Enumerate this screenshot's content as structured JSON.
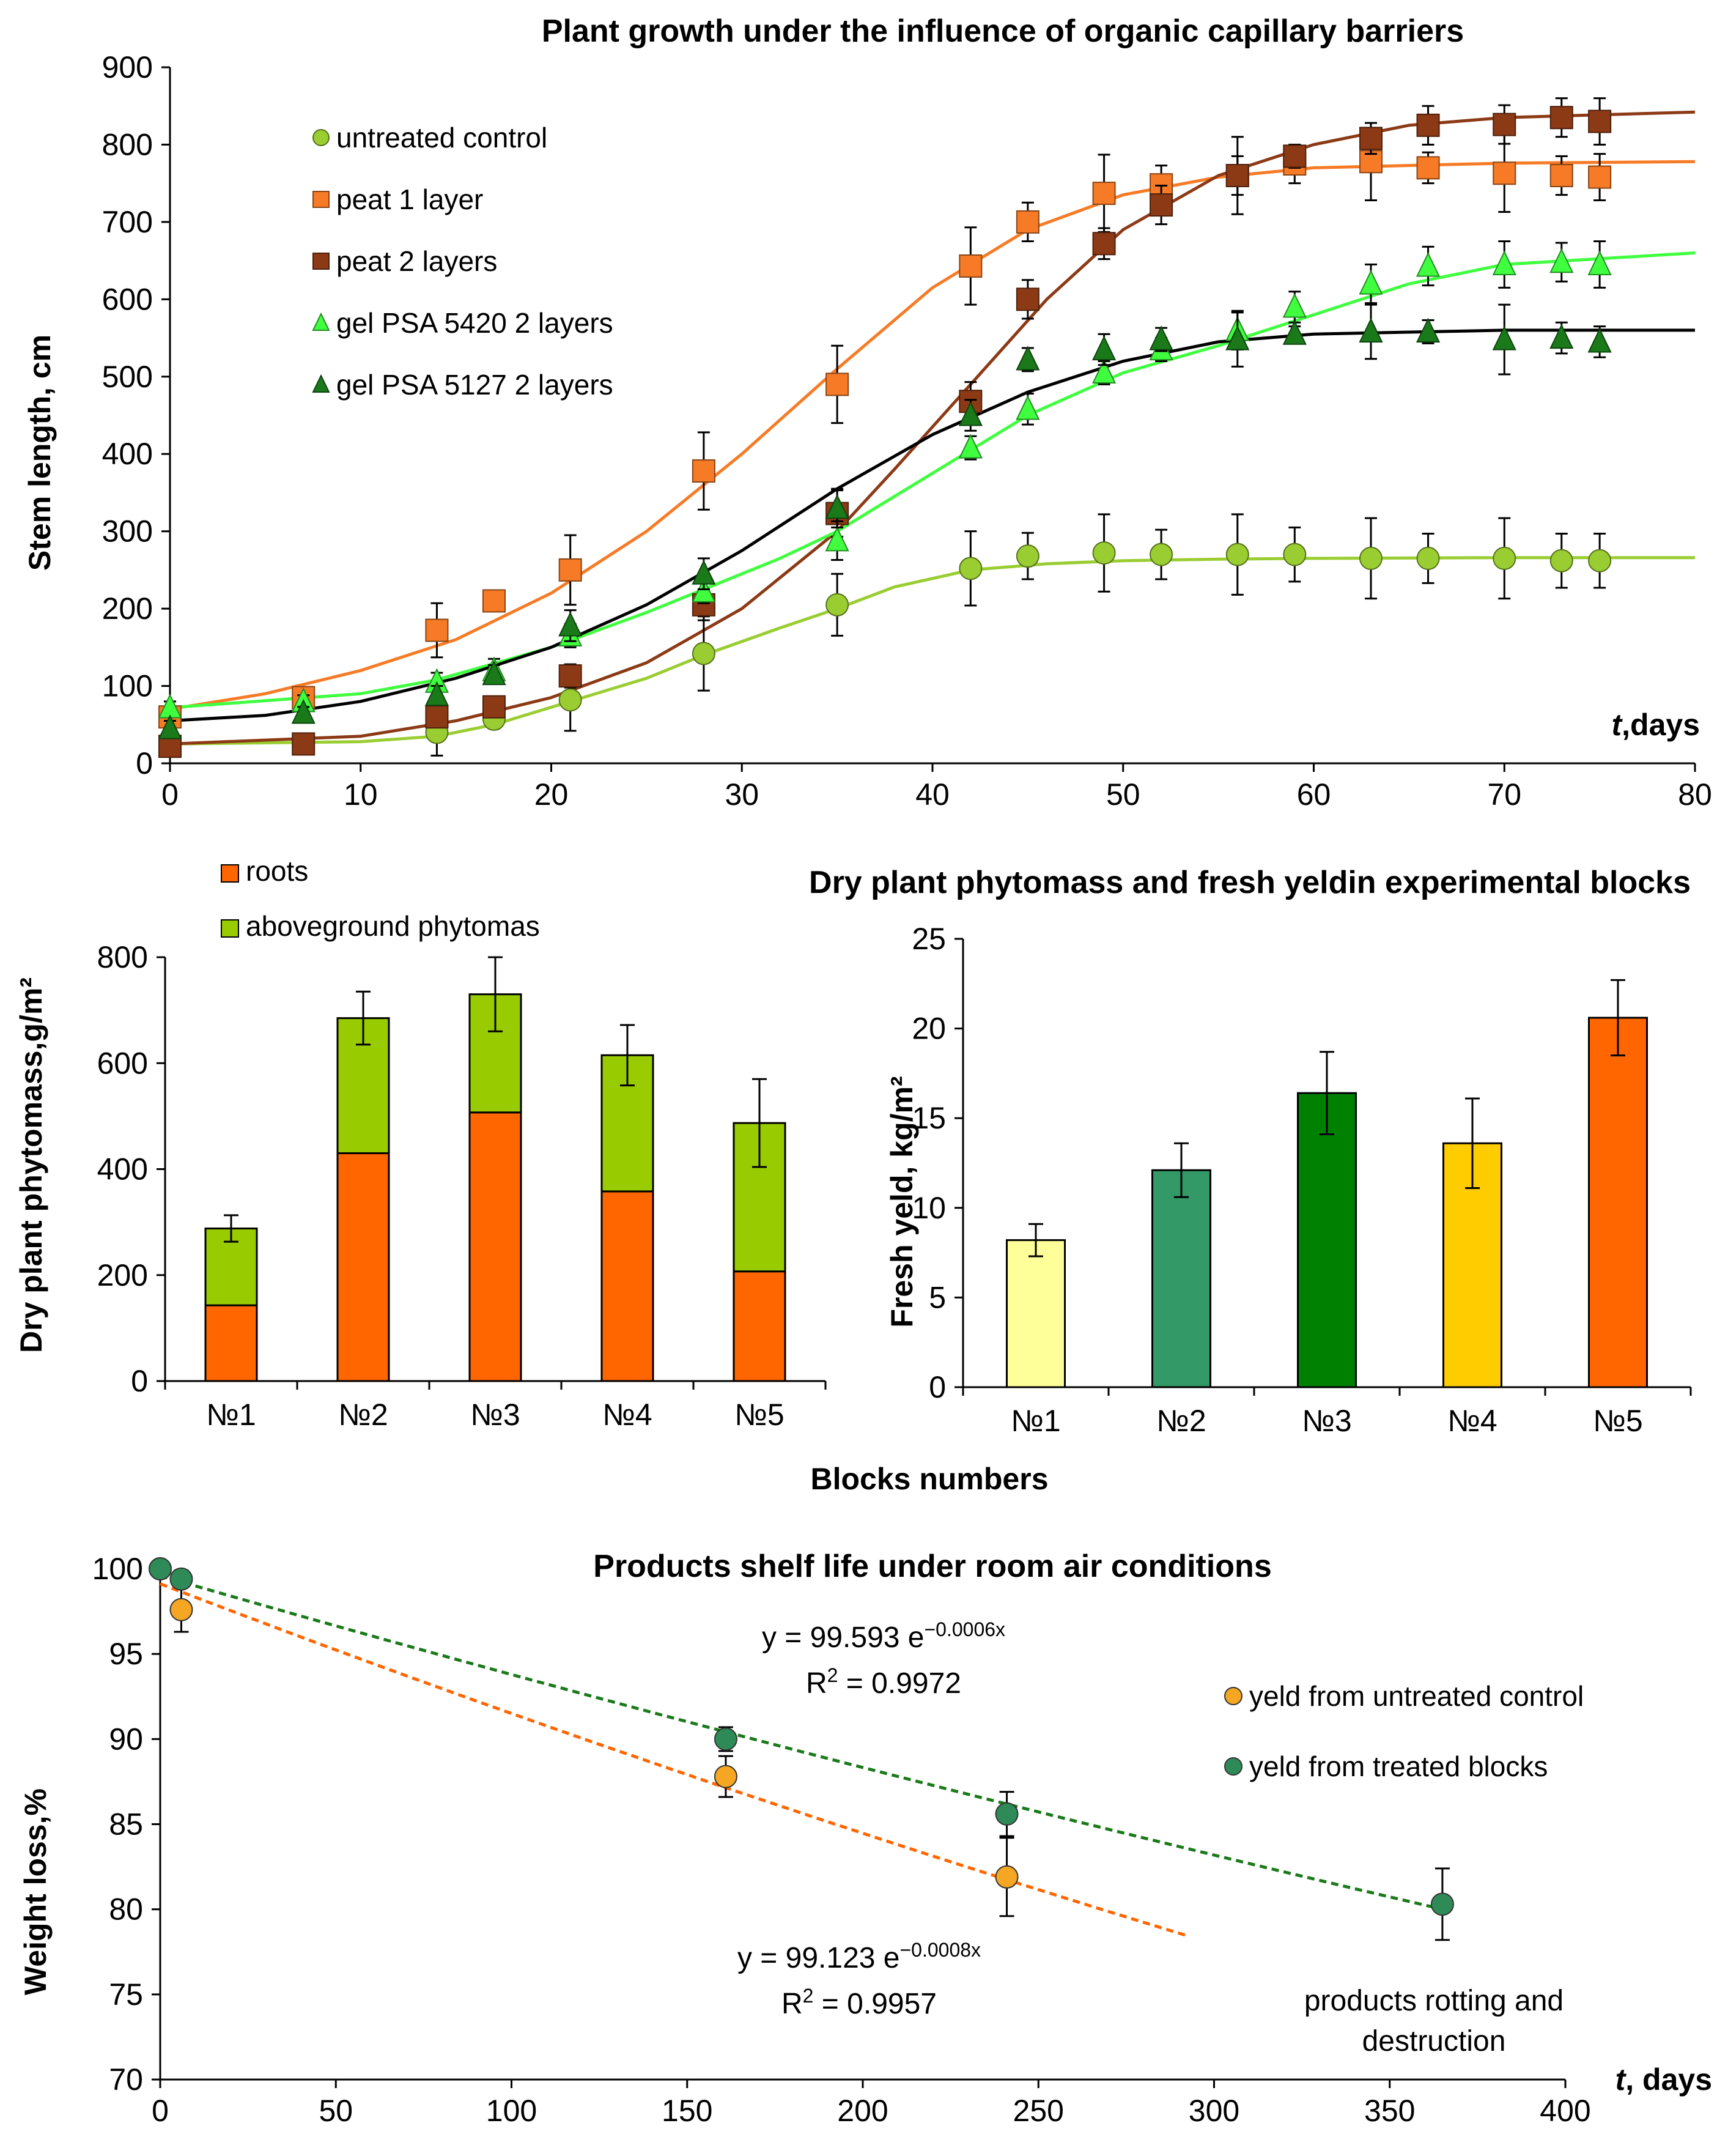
{
  "chart_data": [
    {
      "type": "line",
      "title": "Plant growth under the influence of organic capillary barriers",
      "ylabel": "Stem length, cm",
      "xlabel_italic": "t",
      "xlabel_rest": ",days",
      "xlim": [
        0,
        80
      ],
      "ylim": [
        0,
        900
      ],
      "xticks": [
        0,
        10,
        20,
        30,
        40,
        50,
        60,
        70,
        80
      ],
      "yticks": [
        0,
        100,
        200,
        300,
        400,
        500,
        600,
        700,
        800,
        900
      ],
      "series": [
        {
          "name": "untreated control",
          "marker": "circle",
          "color": "#9acd32",
          "curve_color": "#9acd32",
          "x": [
            14,
            17,
            21,
            28,
            35,
            42,
            45,
            49,
            52,
            56,
            59,
            63,
            66,
            70,
            73,
            75
          ],
          "y": [
            40,
            57,
            82,
            142,
            205,
            252,
            268,
            272,
            270,
            270,
            270,
            265,
            265,
            265,
            262,
            262
          ],
          "err": [
            30,
            12,
            40,
            48,
            40,
            48,
            30,
            50,
            32,
            52,
            35,
            52,
            32,
            52,
            35,
            35
          ],
          "curve_x": [
            0,
            10,
            14,
            17,
            21,
            25,
            28,
            32,
            35,
            38,
            42,
            46,
            50,
            55,
            60,
            70,
            80
          ],
          "curve_y": [
            25,
            28,
            35,
            50,
            80,
            110,
            140,
            175,
            200,
            228,
            250,
            258,
            262,
            264,
            265,
            266,
            266
          ]
        },
        {
          "name": "peat 1 layer",
          "marker": "square",
          "color": "#f77b26",
          "curve_color": "#f77b26",
          "x": [
            0,
            7,
            14,
            17,
            21,
            28,
            35,
            42,
            45,
            49,
            52,
            56,
            59,
            63,
            66,
            70,
            73,
            75
          ],
          "y": [
            60,
            85,
            172,
            210,
            250,
            378,
            490,
            643,
            700,
            737,
            748,
            760,
            775,
            778,
            770,
            763,
            760,
            758
          ],
          "err": [
            10,
            10,
            35,
            10,
            45,
            50,
            50,
            50,
            25,
            50,
            25,
            50,
            25,
            50,
            20,
            50,
            25,
            30
          ],
          "curve_x": [
            0,
            5,
            10,
            15,
            20,
            25,
            30,
            35,
            40,
            45,
            50,
            55,
            60,
            70,
            80
          ],
          "curve_y": [
            70,
            90,
            120,
            160,
            220,
            300,
            400,
            510,
            615,
            690,
            735,
            758,
            770,
            776,
            778
          ]
        },
        {
          "name": "peat 2 layers",
          "marker": "square",
          "color": "#8c3a16",
          "curve_color": "#8c3a16",
          "x": [
            0,
            7,
            14,
            17,
            21,
            28,
            35,
            42,
            45,
            49,
            52,
            56,
            59,
            63,
            66,
            70,
            73,
            75
          ],
          "y": [
            22,
            25,
            60,
            73,
            113,
            205,
            323,
            468,
            600,
            672,
            722,
            760,
            785,
            808,
            825,
            826,
            835,
            830
          ],
          "err": [
            8,
            8,
            12,
            10,
            15,
            20,
            30,
            25,
            25,
            20,
            25,
            25,
            15,
            20,
            25,
            25,
            25,
            30
          ],
          "curve_x": [
            0,
            10,
            15,
            20,
            25,
            30,
            35,
            38,
            42,
            46,
            50,
            55,
            60,
            65,
            70,
            80
          ],
          "curve_y": [
            25,
            35,
            55,
            85,
            130,
            200,
            300,
            380,
            490,
            600,
            690,
            760,
            800,
            825,
            835,
            842
          ]
        },
        {
          "name": "gel PSA 5420 2 layers",
          "marker": "triangle",
          "color": "#3fff3f",
          "curve_color": "#3fff3f",
          "x": [
            0,
            7,
            14,
            17,
            21,
            28,
            35,
            42,
            45,
            49,
            52,
            56,
            59,
            63,
            66,
            70,
            73,
            75
          ],
          "y": [
            72,
            80,
            105,
            120,
            165,
            222,
            288,
            408,
            458,
            505,
            535,
            560,
            590,
            620,
            643,
            645,
            648,
            645
          ],
          "err": [
            8,
            8,
            12,
            15,
            15,
            15,
            25,
            15,
            20,
            15,
            15,
            25,
            20,
            25,
            25,
            30,
            25,
            30
          ],
          "curve_x": [
            0,
            10,
            14,
            20,
            25,
            28,
            32,
            35,
            40,
            45,
            50,
            55,
            60,
            65,
            70,
            80
          ],
          "curve_y": [
            72,
            90,
            108,
            150,
            195,
            225,
            265,
            300,
            375,
            450,
            505,
            540,
            580,
            620,
            645,
            660
          ]
        },
        {
          "name": "gel PSA 5127 2 layers",
          "marker": "triangle",
          "color": "#1a7a1a",
          "curve_color": "#000000",
          "x": [
            0,
            7,
            14,
            17,
            21,
            28,
            35,
            42,
            45,
            49,
            52,
            56,
            59,
            63,
            66,
            70,
            73,
            75
          ],
          "y": [
            45,
            65,
            88,
            115,
            178,
            245,
            330,
            450,
            522,
            535,
            548,
            548,
            555,
            558,
            558,
            548,
            550,
            545
          ],
          "err": [
            10,
            8,
            12,
            12,
            20,
            20,
            25,
            20,
            15,
            20,
            15,
            35,
            10,
            35,
            15,
            45,
            20,
            20
          ],
          "curve_x": [
            0,
            5,
            10,
            15,
            20,
            25,
            30,
            35,
            40,
            45,
            50,
            55,
            60,
            70,
            80
          ],
          "curve_y": [
            55,
            62,
            80,
            110,
            150,
            205,
            275,
            355,
            425,
            480,
            520,
            545,
            555,
            560,
            560
          ]
        }
      ]
    },
    {
      "type": "bar",
      "stacked": true,
      "ylabel": "Dry plant phytomass,g/m²",
      "categories": [
        "№1",
        "№2",
        "№3",
        "№4",
        "№5"
      ],
      "ylim": [
        0,
        800
      ],
      "yticks": [
        0,
        200,
        400,
        600,
        800
      ],
      "series": [
        {
          "name": "roots",
          "color": "#ff6600",
          "values": [
            143,
            430,
            507,
            358,
            207
          ]
        },
        {
          "name": "aboveground phytomas",
          "color": "#99cc00",
          "values": [
            145,
            255,
            223,
            257,
            280
          ]
        }
      ],
      "totals_err": [
        25,
        50,
        70,
        57,
        83
      ]
    },
    {
      "type": "bar",
      "title": "Dry plant phytomass  and fresh yeldin  experimental  blocks",
      "ylabel": "Fresh yeld, kg/m²",
      "categories": [
        "№1",
        "№2",
        "№3",
        "№4",
        "№5"
      ],
      "values": [
        8.2,
        12.1,
        16.4,
        13.6,
        20.6
      ],
      "err": [
        0.9,
        1.5,
        2.3,
        2.5,
        2.1
      ],
      "colors": [
        "#ffff99",
        "#339966",
        "#008000",
        "#ffcc00",
        "#ff6600"
      ],
      "ylim": [
        0,
        25
      ],
      "yticks": [
        0,
        5,
        10,
        15,
        20,
        25
      ],
      "shared_xlabel": "Blocks   numbers"
    },
    {
      "type": "scatter",
      "title": "Products shelf life under room air conditions",
      "ylabel": "Weight loss,%",
      "xlabel_italic": "t",
      "xlabel_rest": ", days",
      "xlim": [
        0,
        400
      ],
      "ylim": [
        70,
        100
      ],
      "xticks": [
        0,
        50,
        100,
        150,
        200,
        250,
        300,
        350,
        400
      ],
      "yticks": [
        70,
        75,
        80,
        85,
        90,
        95,
        100
      ],
      "series": [
        {
          "name": "yeld from untreated control",
          "color": "#f5a623",
          "trend_color": "#ff6600",
          "x": [
            0,
            6,
            161,
            241
          ],
          "y": [
            100,
            97.6,
            87.8,
            81.9
          ],
          "err": [
            0,
            1.3,
            1.2,
            2.3
          ],
          "fit": {
            "a": 99.123,
            "b": -0.0008,
            "x_end": 292
          },
          "equation_main": "y = 99.123 e",
          "equation_exp": "−0.0008x",
          "r2_label": "R",
          "r2_sup": "2",
          "r2_value": " = 0.9957"
        },
        {
          "name": "yeld from treated blocks",
          "color": "#2e8b57",
          "trend_color": "#1a7a1a",
          "x": [
            0,
            6,
            161,
            241,
            365
          ],
          "y": [
            100,
            99.4,
            90.0,
            85.6,
            80.3
          ],
          "err": [
            0,
            0.5,
            0.7,
            1.3,
            2.1
          ],
          "fit": {
            "a": 99.593,
            "b": -0.0006,
            "x_end": 365
          },
          "equation_main": "y = 99.593 e",
          "equation_exp": "−0.0006x",
          "r2_label": "R",
          "r2_sup": "2",
          "r2_value": " = 0.9972"
        }
      ],
      "annotation_line1": "products rotting and",
      "annotation_line2": "destruction"
    }
  ]
}
